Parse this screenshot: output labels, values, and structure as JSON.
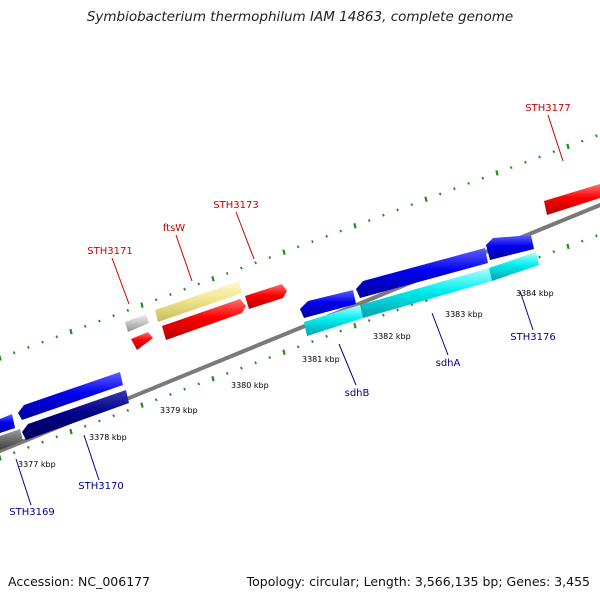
{
  "title": "Symbiobacterium thermophilum IAM 14863, complete genome",
  "footer": {
    "accession": "Accession: NC_006177",
    "summary": "Topology: circular; Length: 3,566,135 bp; Genes: 3,455"
  },
  "colors": {
    "forward_label": "#cc0000",
    "reverse_label": "#00008b",
    "backbone": "#808080",
    "tick": "#228b22"
  },
  "scale_labels": [
    "3377 kbp",
    "3378 kbp",
    "3379 kbp",
    "3380 kbp",
    "3381 kbp",
    "3382 kbp",
    "3383 kbp",
    "3384 kbp"
  ],
  "gene_labels": {
    "forward": [
      "STH3171",
      "ftsW",
      "STH3173",
      "STH3177"
    ],
    "reverse": [
      "STH3169",
      "STH3170",
      "sdhB",
      "sdhA",
      "STH3176"
    ]
  }
}
